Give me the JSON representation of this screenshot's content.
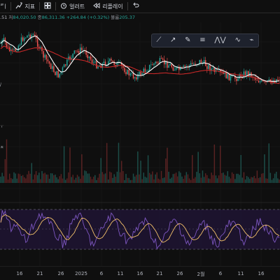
{
  "toolbar": {
    "first_glyph": "ㅣ",
    "indicators_label": "지표",
    "alert_label": "얼러트",
    "replay_label": "리플레이",
    "icons": [
      "add-indicator-icon",
      "layouts-icon",
      "alarm-clock-icon",
      "replay-icon",
      "undo-icon"
    ]
  },
  "legend": {
    "fragment": ".51",
    "low_label": "저",
    "low_value": "84,020.50",
    "close_label": "종",
    "close_value": "86,311.36",
    "change": "+264.84 (+0.32%)",
    "volume_label": "볼륨",
    "volume_value": "205.37"
  },
  "drawing_toolbar": {
    "tools": [
      "trend-line-icon",
      "ray-icon",
      "pencil-icon",
      "horizontal-lines-icon",
      "zigzag-icon",
      "wave-icon",
      "brush-icon"
    ]
  },
  "left_marks": [
    "ㄹ",
    "ㅣ",
    "/",
    "ㅜ",
    "ㅈ"
  ],
  "x_axis": {
    "labels": [
      "",
      "16",
      "21",
      "26",
      "2025",
      "6",
      "11",
      "16",
      "21",
      "26",
      "2월",
      "6",
      "11",
      "16"
    ]
  },
  "colors": {
    "background": "#0f0f0f",
    "bullish": "#26a69a",
    "bearish": "#ef5350",
    "ma_fast": "#ffffff",
    "ma_slow": "#c62828",
    "rsi_line": "#7e57c2",
    "rsi_signal": "#f5c26b",
    "rsi_band": "#1e1433"
  },
  "chart_data": {
    "type": "candlestick",
    "price_path": [
      62,
      58,
      70,
      76,
      72,
      64,
      55,
      52,
      50,
      50,
      60,
      72,
      82,
      88,
      96,
      104,
      108,
      100,
      92,
      84,
      78,
      74,
      72,
      72,
      78,
      86,
      92,
      94,
      92,
      90,
      88,
      90,
      92,
      94,
      98,
      104,
      108,
      110,
      108,
      104,
      100,
      96,
      92,
      90,
      88,
      90,
      92,
      94,
      98,
      100,
      100,
      96,
      94,
      92,
      90,
      88,
      90,
      94,
      98,
      102,
      104,
      106,
      108,
      110,
      112,
      112,
      110,
      106,
      104,
      106,
      110,
      114,
      118,
      120,
      118,
      116,
      114,
      112
    ],
    "rsi_path": [
      312,
      305,
      318,
      326,
      320,
      330,
      340,
      345,
      336,
      322,
      312,
      306,
      310,
      318,
      326,
      334,
      340,
      348,
      344,
      330,
      316,
      306,
      312,
      324,
      336,
      346,
      350,
      340,
      328,
      318,
      312,
      310,
      318,
      330,
      338,
      344,
      342,
      336,
      326,
      316,
      318,
      328,
      340,
      348,
      352,
      344,
      332,
      322,
      316,
      320,
      330,
      342,
      350,
      346,
      334,
      324,
      320,
      326,
      336,
      346,
      350,
      340,
      330,
      322,
      320,
      326,
      334,
      342,
      346,
      338,
      328,
      320,
      318,
      324,
      332,
      340,
      342,
      336
    ]
  }
}
